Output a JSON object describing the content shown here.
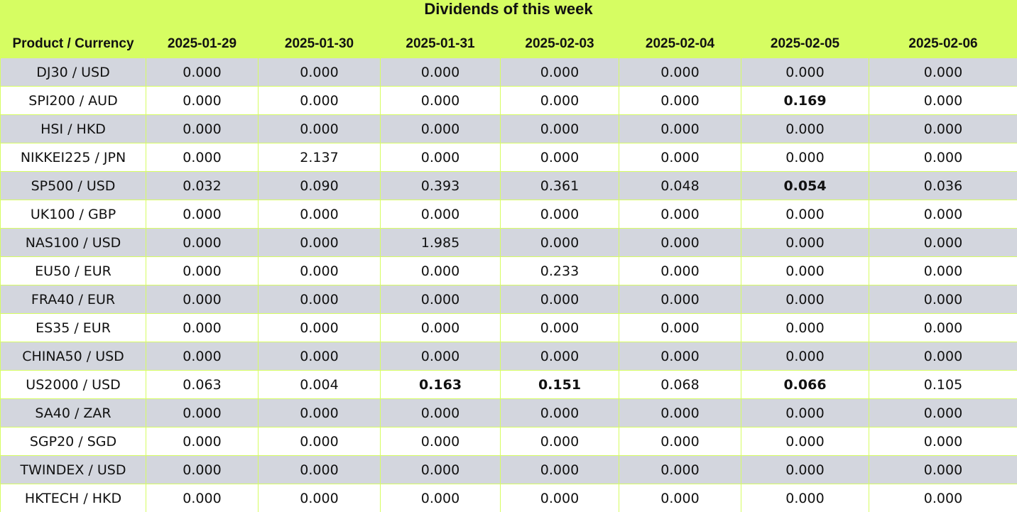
{
  "table": {
    "title": "Dividends of this week",
    "columns": [
      "Product / Currency",
      "2025-01-29",
      "2025-01-30",
      "2025-01-31",
      "2025-02-03",
      "2025-02-04",
      "2025-02-05",
      "2025-02-06"
    ],
    "rows": [
      {
        "product": "DJ30 / USD",
        "values": [
          "0.000",
          "0.000",
          "0.000",
          "0.000",
          "0.000",
          "0.000",
          "0.000"
        ]
      },
      {
        "product": "SPI200 / AUD",
        "values": [
          "0.000",
          "0.000",
          "0.000",
          "0.000",
          "0.000",
          {
            "value": "0.169",
            "bold": true
          },
          "0.000"
        ]
      },
      {
        "product": "HSI / HKD",
        "values": [
          "0.000",
          "0.000",
          "0.000",
          "0.000",
          "0.000",
          "0.000",
          "0.000"
        ]
      },
      {
        "product": "NIKKEI225 / JPN",
        "values": [
          "0.000",
          "2.137",
          "0.000",
          "0.000",
          "0.000",
          "0.000",
          "0.000"
        ]
      },
      {
        "product": "SP500 / USD",
        "values": [
          "0.032",
          "0.090",
          "0.393",
          "0.361",
          "0.048",
          {
            "value": "0.054",
            "bold": true
          },
          "0.036"
        ]
      },
      {
        "product": "UK100 / GBP",
        "values": [
          "0.000",
          "0.000",
          "0.000",
          "0.000",
          "0.000",
          "0.000",
          "0.000"
        ]
      },
      {
        "product": "NAS100 / USD",
        "values": [
          "0.000",
          "0.000",
          "1.985",
          "0.000",
          "0.000",
          "0.000",
          "0.000"
        ]
      },
      {
        "product": "EU50 / EUR",
        "values": [
          "0.000",
          "0.000",
          "0.000",
          "0.233",
          "0.000",
          "0.000",
          "0.000"
        ]
      },
      {
        "product": "FRA40 / EUR",
        "values": [
          "0.000",
          "0.000",
          "0.000",
          "0.000",
          "0.000",
          "0.000",
          "0.000"
        ]
      },
      {
        "product": "ES35 / EUR",
        "values": [
          "0.000",
          "0.000",
          "0.000",
          "0.000",
          "0.000",
          "0.000",
          "0.000"
        ]
      },
      {
        "product": "CHINA50 / USD",
        "values": [
          "0.000",
          "0.000",
          "0.000",
          "0.000",
          "0.000",
          "0.000",
          "0.000"
        ]
      },
      {
        "product": "US2000 / USD",
        "values": [
          "0.063",
          "0.004",
          {
            "value": "0.163",
            "bold": true
          },
          {
            "value": "0.151",
            "bold": true
          },
          "0.068",
          {
            "value": "0.066",
            "bold": true
          },
          "0.105"
        ]
      },
      {
        "product": "SA40 / ZAR",
        "values": [
          "0.000",
          "0.000",
          "0.000",
          "0.000",
          "0.000",
          "0.000",
          "0.000"
        ]
      },
      {
        "product": "SGP20 / SGD",
        "values": [
          "0.000",
          "0.000",
          "0.000",
          "0.000",
          "0.000",
          "0.000",
          "0.000"
        ]
      },
      {
        "product": "TWINDEX / USD",
        "values": [
          "0.000",
          "0.000",
          "0.000",
          "0.000",
          "0.000",
          "0.000",
          "0.000"
        ]
      },
      {
        "product": "HKTECH / HKD",
        "values": [
          "0.000",
          "0.000",
          "0.000",
          "0.000",
          "0.000",
          "0.000",
          "0.000"
        ]
      }
    ]
  }
}
